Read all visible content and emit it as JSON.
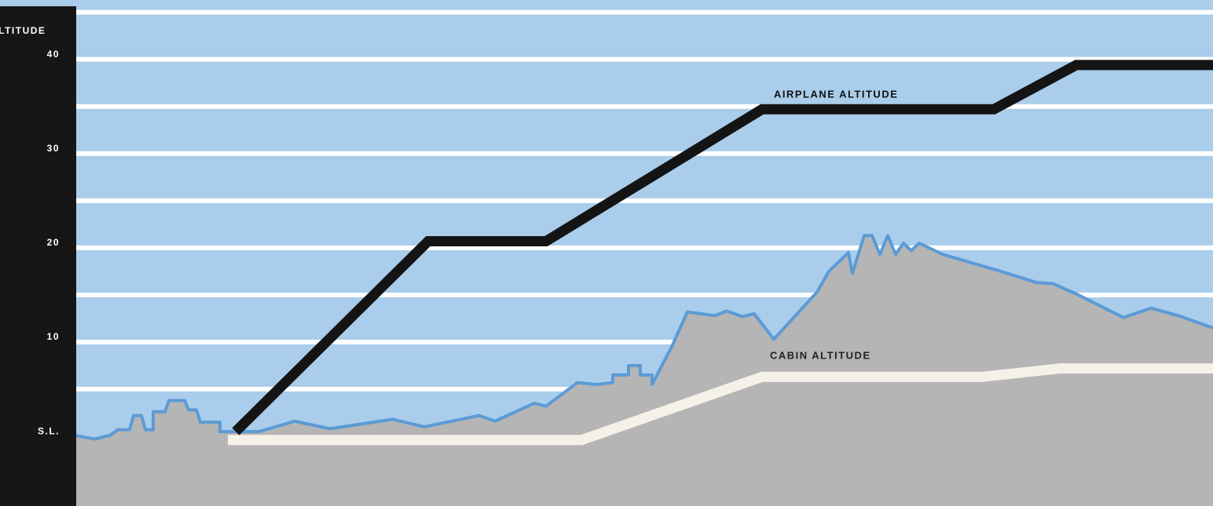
{
  "chart_data": {
    "type": "line",
    "y_label": "ALTITUDE",
    "ylim": [
      -7.9,
      45.8
    ],
    "xlim": [
      0,
      1449
    ],
    "yticks": [
      {
        "value": 0,
        "label": "S.L."
      },
      10,
      20,
      30,
      40
    ],
    "grid_lines": [
      5,
      10,
      15,
      20,
      25,
      30,
      35,
      40,
      45
    ],
    "grid_color": "#ffffff",
    "background": "#a9cdeb",
    "series": [
      {
        "name": "AIRPLANE ALTITUDE",
        "color": "#141414",
        "x": [
          205,
          450,
          600,
          875,
          1170,
          1275,
          1449
        ],
        "values": [
          0,
          20.2,
          20.2,
          34.2,
          34.2,
          38.9,
          38.9
        ]
      },
      {
        "name": "CABIN ALTITUDE",
        "color": "#f6f1e8",
        "x": [
          195,
          645,
          875,
          1155,
          1255,
          1449
        ],
        "values": [
          -0.9,
          -0.9,
          5.8,
          5.8,
          6.7,
          6.7
        ]
      }
    ],
    "terrain": {
      "color": "#b5b5b5",
      "edge_color": "#5b9bd5",
      "x": [
        0,
        25,
        45,
        55,
        70,
        75,
        85,
        90,
        100,
        100,
        115,
        120,
        140,
        145,
        155,
        160,
        185,
        185,
        235,
        280,
        325,
        405,
        445,
        515,
        535,
        585,
        600,
        640,
        665,
        685,
        685,
        705,
        705,
        720,
        720,
        735,
        735,
        760,
        780,
        815,
        830,
        850,
        865,
        890,
        945,
        960,
        985,
        990,
        1005,
        1015,
        1025,
        1035,
        1045,
        1055,
        1065,
        1075,
        1105,
        1175,
        1225,
        1245,
        1275,
        1335,
        1370,
        1405,
        1449
      ],
      "values": [
        -0.4,
        -0.8,
        -0.4,
        0.2,
        0.2,
        1.7,
        1.7,
        0.2,
        0.2,
        2.1,
        2.1,
        3.3,
        3.3,
        2.3,
        2.3,
        1,
        1,
        0,
        0,
        1.1,
        0.3,
        1.3,
        0.5,
        1.7,
        1.1,
        3,
        2.7,
        5.2,
        5,
        5.2,
        6,
        6,
        7,
        7,
        6,
        6,
        5,
        9,
        12.7,
        12.3,
        12.8,
        12.2,
        12.5,
        9.8,
        14.8,
        17,
        19,
        16.8,
        20.8,
        20.8,
        18.8,
        20.8,
        18.8,
        20,
        19.2,
        20,
        18.8,
        17.1,
        15.8,
        15.7,
        14.6,
        12.1,
        13.1,
        12.3,
        11
      ]
    }
  }
}
